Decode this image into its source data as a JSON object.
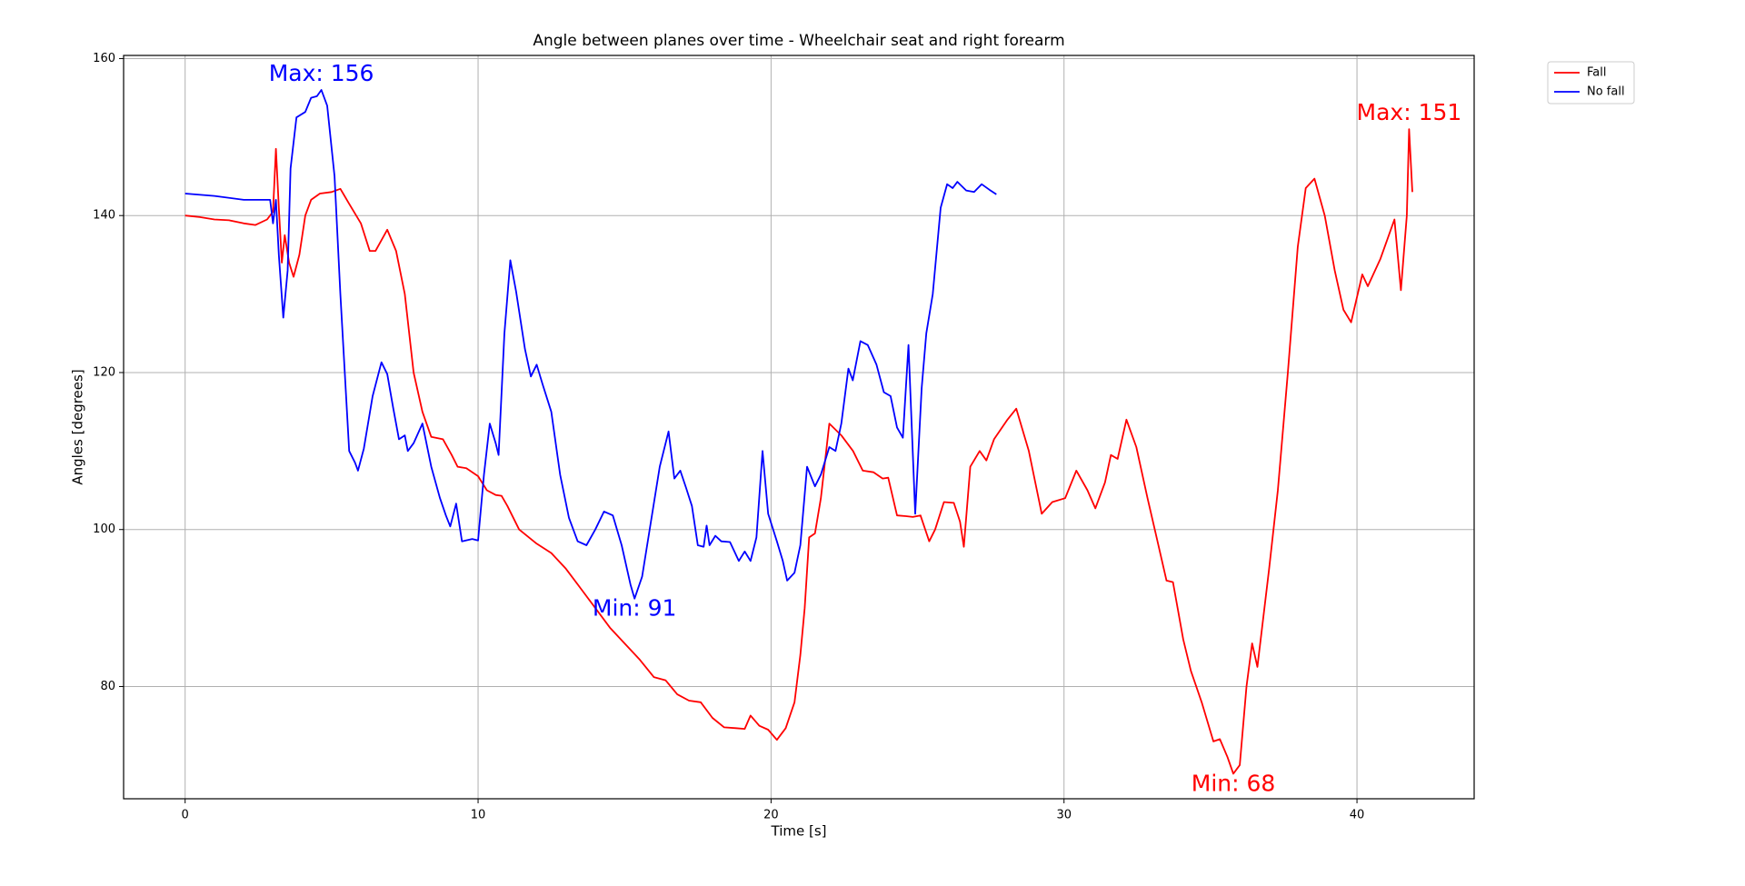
{
  "chart_data": {
    "type": "line",
    "title": "Angle between planes over time - Wheelchair seat and right forearm",
    "x_label": "Time [s]",
    "y_label": "Angles [degrees]",
    "xlim": [
      -2.1,
      44.0
    ],
    "ylim": [
      65.7,
      160.4
    ],
    "xticks": [
      0,
      10,
      20,
      30,
      40
    ],
    "yticks": [
      80,
      100,
      120,
      140,
      160
    ],
    "grid": true,
    "legend": "upper right outside",
    "series": [
      {
        "name": "Fall",
        "color": "#ff0000",
        "max_label": "Max: 151",
        "min_label": "Min: 68",
        "x": [
          0,
          0.5,
          1,
          1.5,
          2,
          2.4,
          2.8,
          3.0,
          3.1,
          3.2,
          3.3,
          3.4,
          3.55,
          3.7,
          3.9,
          4.1,
          4.3,
          4.6,
          5,
          5.3,
          5.6,
          6,
          6.3,
          6.5,
          6.9,
          7.2,
          7.5,
          7.8,
          8.1,
          8.4,
          8.8,
          9.1,
          9.3,
          9.6,
          10,
          10.3,
          10.6,
          10.8,
          11,
          11.4,
          12,
          12.5,
          13,
          13.5,
          14,
          14.5,
          15,
          15.5,
          16,
          16.4,
          16.8,
          17.2,
          17.6,
          18,
          18.4,
          18.8,
          19.1,
          19.3,
          19.6,
          19.9,
          20.2,
          20.5,
          20.8,
          21.0,
          21.15,
          21.3,
          21.5,
          21.7,
          21.99,
          22.4,
          22.8,
          23.13,
          23.5,
          23.81,
          24.0,
          24.3,
          24.6,
          24.84,
          25.1,
          25.4,
          25.6,
          25.9,
          26.24,
          26.45,
          26.58,
          26.8,
          27.12,
          27.35,
          27.61,
          28.07,
          28.37,
          28.8,
          29.24,
          29.6,
          30.04,
          30.42,
          30.8,
          31.07,
          31.4,
          31.6,
          31.83,
          32.13,
          32.47,
          32.85,
          33.16,
          33.5,
          33.72,
          34.07,
          34.33,
          34.7,
          35.1,
          35.32,
          35.58,
          35.78,
          36.0,
          36.23,
          36.42,
          36.6,
          37.0,
          37.3,
          37.64,
          37.98,
          38.25,
          38.55,
          38.9,
          39.24,
          39.54,
          39.8,
          40.18,
          40.37,
          40.8,
          41.28,
          41.5,
          41.7,
          41.78,
          41.89
        ],
        "values": [
          140,
          139.8,
          139.5,
          139.4,
          139,
          138.8,
          139.5,
          140.5,
          148.5,
          141,
          134,
          137.5,
          134,
          132.2,
          135,
          140,
          142,
          142.8,
          143,
          143.4,
          141.5,
          139,
          135.5,
          135.5,
          138.2,
          135.5,
          130,
          120,
          115,
          111.8,
          111.5,
          109.5,
          108,
          107.8,
          106.8,
          105,
          104.4,
          104.3,
          103,
          100,
          98.2,
          97,
          95,
          92.5,
          90,
          87.5,
          85.5,
          83.5,
          81.2,
          80.8,
          79,
          78.2,
          78,
          76,
          74.8,
          74.7,
          74.6,
          76.3,
          75,
          74.5,
          73.2,
          74.7,
          78,
          84,
          90,
          99,
          99.5,
          104,
          113.5,
          112,
          110,
          107.5,
          107.3,
          106.5,
          106.6,
          101.8,
          101.7,
          101.6,
          101.8,
          98.5,
          100,
          103.5,
          103.4,
          101,
          97.8,
          108,
          110,
          108.8,
          111.5,
          114,
          115.4,
          110,
          102,
          103.5,
          104,
          107.5,
          105,
          102.7,
          106,
          109.5,
          109,
          114,
          110.5,
          104,
          99,
          93.5,
          93.3,
          86,
          82,
          78,
          73,
          73.3,
          71,
          68.9,
          70,
          80,
          85.5,
          82.5,
          95,
          105,
          120,
          136,
          143.5,
          144.7,
          140,
          133,
          128,
          126.4,
          132.5,
          131,
          134.5,
          139.5,
          130.5,
          140,
          151,
          143
        ]
      },
      {
        "name": "No fall",
        "color": "#0000ff",
        "max_label": "Max: 156",
        "min_label": "Min: 91",
        "x": [
          0,
          1,
          2,
          2.9,
          3.0,
          3.1,
          3.2,
          3.35,
          3.5,
          3.6,
          3.8,
          4.1,
          4.3,
          4.5,
          4.65,
          4.85,
          5.1,
          5.3,
          5.6,
          5.8,
          5.9,
          6.1,
          6.4,
          6.7,
          6.9,
          7.1,
          7.3,
          7.5,
          7.6,
          7.8,
          8.1,
          8.4,
          8.7,
          8.9,
          9.05,
          9.25,
          9.45,
          9.8,
          10,
          10.2,
          10.4,
          10.6,
          10.7,
          10.9,
          11.1,
          11.3,
          11.6,
          11.8,
          12,
          12.2,
          12.5,
          12.8,
          13.1,
          13.4,
          13.7,
          14.0,
          14.3,
          14.6,
          14.9,
          15.2,
          15.34,
          15.6,
          15.9,
          16.2,
          16.5,
          16.7,
          16.9,
          17.1,
          17.3,
          17.5,
          17.7,
          17.8,
          17.9,
          18.1,
          18.3,
          18.6,
          18.9,
          19.1,
          19.3,
          19.5,
          19.71,
          19.9,
          20.2,
          20.4,
          20.55,
          20.8,
          21.0,
          21.23,
          21.5,
          21.7,
          21.99,
          22.2,
          22.4,
          22.64,
          22.79,
          23.05,
          23.3,
          23.6,
          23.85,
          24.08,
          24.3,
          24.5,
          24.69,
          24.92,
          25.14,
          25.3,
          25.52,
          25.79,
          26.01,
          26.2,
          26.36,
          26.66,
          26.93,
          27.19,
          27.45,
          27.69
        ],
        "values": [
          142.8,
          142.5,
          142,
          142,
          139,
          142,
          135,
          127,
          133,
          146,
          152.5,
          153.2,
          155,
          155.2,
          156,
          154,
          145,
          130,
          110,
          108.5,
          107.5,
          110.3,
          117,
          121.3,
          119.8,
          115.5,
          111.5,
          112,
          110,
          111,
          113.5,
          108,
          104,
          101.8,
          100.4,
          103.3,
          98.5,
          98.8,
          98.6,
          107,
          113.5,
          111,
          109.5,
          125,
          134.3,
          130.3,
          123,
          119.5,
          121,
          118.5,
          115,
          107,
          101.5,
          98.5,
          98,
          100,
          102.3,
          101.8,
          98,
          93,
          91.2,
          94,
          101,
          108,
          112.5,
          106.5,
          107.5,
          105.3,
          103,
          98,
          97.8,
          100.5,
          98,
          99.2,
          98.5,
          98.4,
          96,
          97.2,
          96,
          99,
          110,
          102,
          98.5,
          96,
          93.5,
          94.5,
          98,
          108,
          105.5,
          107,
          110.5,
          110,
          113.5,
          120.5,
          119,
          124,
          123.5,
          121,
          117.5,
          117,
          113,
          111.7,
          123.5,
          102,
          118,
          125,
          130,
          141,
          144,
          143.5,
          144.3,
          143.2,
          143,
          144,
          143.3,
          142.7
        ]
      }
    ]
  }
}
